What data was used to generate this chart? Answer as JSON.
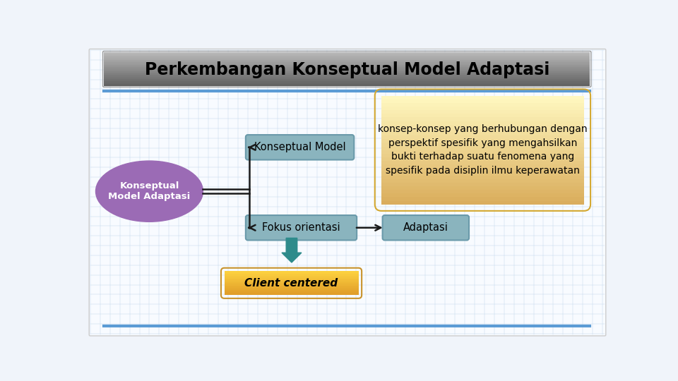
{
  "title": "Perkembangan Konseptual Model Adaptasi",
  "title_bg_top": "#a0a0a0",
  "title_bg_bot": "#404040",
  "title_color": "#000000",
  "bg_color": "#eef4fa",
  "grid_color": "#c5d8ec",
  "border_color": "#5b9bd5",
  "ellipse_text": "Konseptual\nModel Adaptasi",
  "ellipse_color": "#9b6bb5",
  "ellipse_text_color": "#ffffff",
  "box1_text": "Konseptual Model",
  "box1_color": "#8ab4be",
  "box1_text_color": "#000000",
  "box2_text": "Fokus orientasi",
  "box2_color": "#8ab4be",
  "box2_text_color": "#000000",
  "box3_text": "Adaptasi",
  "box3_color": "#8ab4be",
  "box3_text_color": "#000000",
  "box4_text": "Client centered",
  "box4_color_top": "#f5c842",
  "box4_color_bot": "#e8a830",
  "box4_text_color": "#000000",
  "desc_text": "konsep-konsep yang berhubungan dengan\nperspektif spesifik yang mengahsilkan\nbukti terhadap suatu fenomena yang\nspesifik pada disiplin ilmu keperawatan",
  "desc_bg_top": "#fffbe0",
  "desc_bg_bot": "#f0c060",
  "desc_text_color": "#000000",
  "arrow_color": "#1a1a1a",
  "teal_arrow_color": "#2e8b8b",
  "slide_bg": "#f0f4fa"
}
